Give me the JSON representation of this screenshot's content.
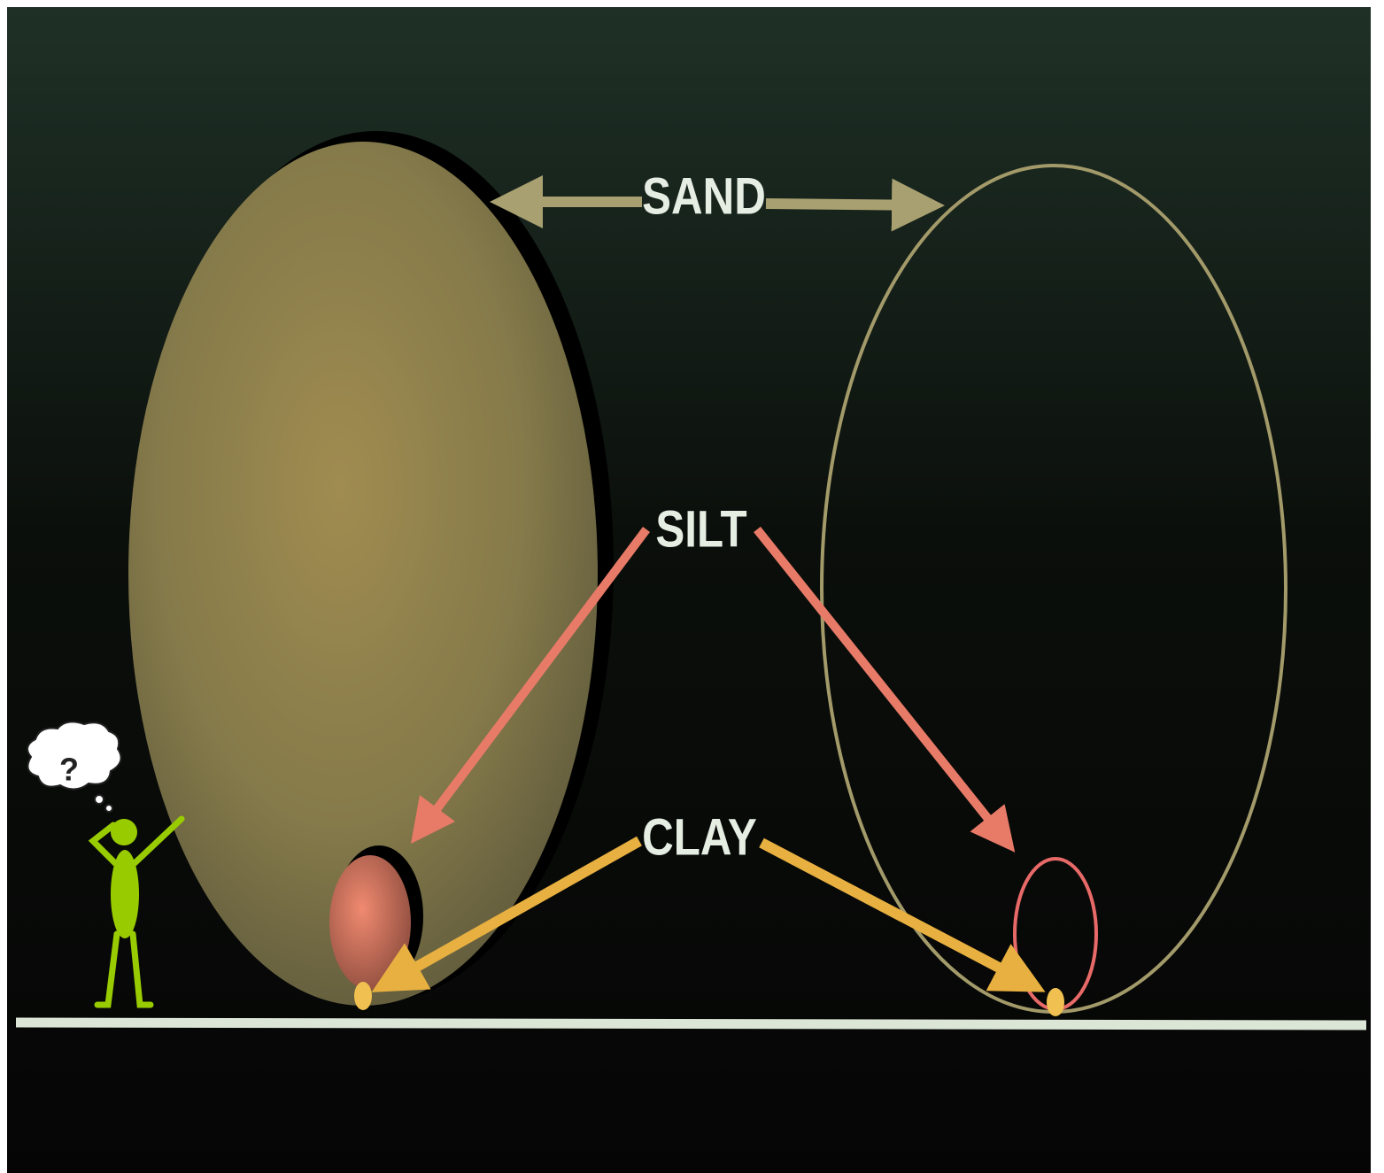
{
  "labels": {
    "sand": "SAND",
    "silt": "SILT",
    "clay": "CLAY"
  },
  "thought": "?"
}
